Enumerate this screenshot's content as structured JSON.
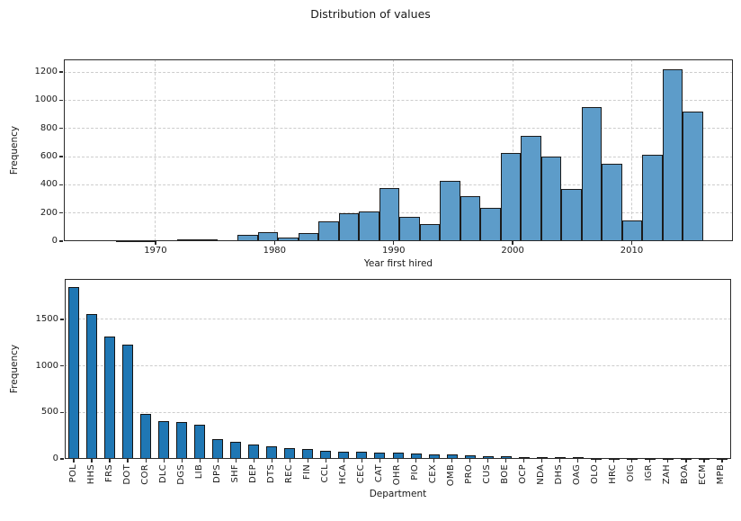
{
  "figure": {
    "suptitle": "Distribution of values",
    "background": "#ffffff"
  },
  "chart_data": [
    {
      "id": "year-first-hired-histogram",
      "type": "histogram",
      "title": "Distribution of values",
      "xlabel": "Year first hired",
      "ylabel": "Frequency",
      "bin_start": 1966.7,
      "bin_width": 1.7,
      "values": [
        4,
        4,
        0,
        13,
        13,
        0,
        47,
        63,
        26,
        56,
        142,
        196,
        212,
        378,
        173,
        122,
        428,
        318,
        236,
        625,
        745,
        600,
        368,
        950,
        550,
        148,
        610,
        1218,
        918
      ],
      "xlim": [
        1962.3,
        2018.5
      ],
      "ylim": [
        0,
        1290
      ],
      "xticks": [
        1970,
        1980,
        1990,
        2000,
        2010
      ],
      "yticks": [
        0,
        200,
        400,
        600,
        800,
        1000,
        1200
      ],
      "grid": "both",
      "legend": "none",
      "bar_color": "#5d9cc9",
      "bar_edge": "#1b1b1b"
    },
    {
      "id": "department-bar-chart",
      "type": "bar",
      "title": "",
      "xlabel": "Department",
      "ylabel": "Frequency",
      "categories": [
        "POL",
        "HHS",
        "FRS",
        "DOT",
        "COR",
        "DLC",
        "DGS",
        "LIB",
        "DPS",
        "SHF",
        "DEP",
        "DTS",
        "REC",
        "FIN",
        "CCL",
        "HCA",
        "CEC",
        "CAT",
        "OHR",
        "PIO",
        "CEX",
        "OMB",
        "PRO",
        "CUS",
        "BOE",
        "OCP",
        "NDA",
        "DHS",
        "OAG",
        "OLO",
        "HRC",
        "OIG",
        "IGR",
        "ZAH",
        "BOA",
        "ECM",
        "MPB"
      ],
      "values": [
        1845,
        1555,
        1315,
        1225,
        485,
        407,
        397,
        372,
        215,
        180,
        155,
        140,
        120,
        105,
        88,
        74,
        73,
        72,
        66,
        58,
        46,
        44,
        41,
        30,
        29,
        19,
        18,
        16,
        15,
        14,
        8,
        7,
        6,
        6,
        5,
        4,
        3
      ],
      "ylim": [
        0,
        1935
      ],
      "yticks": [
        0,
        500,
        1000,
        1500
      ],
      "grid": "y",
      "legend": "none",
      "bar_color": "#1f77b4",
      "bar_edge": "#141414"
    }
  ]
}
